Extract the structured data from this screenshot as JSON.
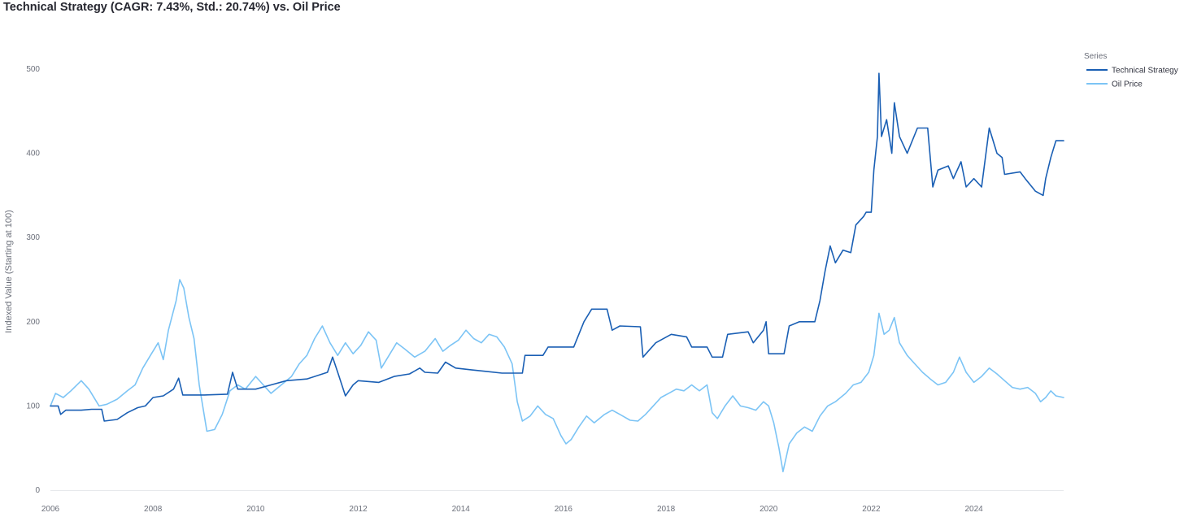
{
  "chart_data": {
    "type": "line",
    "title": "Technical Strategy (CAGR: 7.43%, Std.: 20.74%) vs. Oil Price",
    "xlabel": "",
    "ylabel": "Indexed Value (Starting at 100)",
    "xlim": [
      2006,
      2025.75
    ],
    "ylim": [
      0,
      500
    ],
    "x_ticks": [
      "2006",
      "2008",
      "2010",
      "2012",
      "2014",
      "2016",
      "2018",
      "2020",
      "2022",
      "2024"
    ],
    "y_ticks": [
      "0",
      "100",
      "200",
      "300",
      "400",
      "500"
    ],
    "grid": false,
    "legend": {
      "title": "Series",
      "position": "top-right"
    },
    "series": [
      {
        "name": "Technical Strategy",
        "color": "#1a5fb4",
        "points": [
          [
            2006.0,
            100
          ],
          [
            2006.15,
            100
          ],
          [
            2006.2,
            90
          ],
          [
            2006.3,
            95
          ],
          [
            2006.6,
            95
          ],
          [
            2006.8,
            96
          ],
          [
            2007.0,
            96
          ],
          [
            2007.05,
            82
          ],
          [
            2007.3,
            84
          ],
          [
            2007.5,
            92
          ],
          [
            2007.7,
            98
          ],
          [
            2007.85,
            100
          ],
          [
            2008.0,
            110
          ],
          [
            2008.2,
            112
          ],
          [
            2008.4,
            120
          ],
          [
            2008.5,
            133
          ],
          [
            2008.58,
            113
          ],
          [
            2009.0,
            113
          ],
          [
            2009.45,
            114
          ],
          [
            2009.55,
            140
          ],
          [
            2009.65,
            120
          ],
          [
            2010.0,
            120
          ],
          [
            2010.3,
            125
          ],
          [
            2010.6,
            130
          ],
          [
            2011.0,
            132
          ],
          [
            2011.4,
            140
          ],
          [
            2011.5,
            158
          ],
          [
            2011.6,
            140
          ],
          [
            2011.75,
            112
          ],
          [
            2011.9,
            125
          ],
          [
            2012.0,
            130
          ],
          [
            2012.4,
            128
          ],
          [
            2012.7,
            135
          ],
          [
            2013.0,
            138
          ],
          [
            2013.2,
            145
          ],
          [
            2013.3,
            140
          ],
          [
            2013.55,
            139
          ],
          [
            2013.7,
            152
          ],
          [
            2013.9,
            145
          ],
          [
            2014.2,
            143
          ],
          [
            2014.5,
            141
          ],
          [
            2014.8,
            139
          ],
          [
            2015.2,
            139
          ],
          [
            2015.25,
            160
          ],
          [
            2015.6,
            160
          ],
          [
            2015.7,
            170
          ],
          [
            2016.2,
            170
          ],
          [
            2016.4,
            200
          ],
          [
            2016.55,
            215
          ],
          [
            2016.85,
            215
          ],
          [
            2016.95,
            190
          ],
          [
            2017.1,
            195
          ],
          [
            2017.5,
            194
          ],
          [
            2017.55,
            158
          ],
          [
            2017.8,
            175
          ],
          [
            2018.1,
            185
          ],
          [
            2018.4,
            182
          ],
          [
            2018.5,
            170
          ],
          [
            2018.8,
            170
          ],
          [
            2018.9,
            158
          ],
          [
            2019.1,
            158
          ],
          [
            2019.2,
            185
          ],
          [
            2019.6,
            188
          ],
          [
            2019.7,
            175
          ],
          [
            2019.9,
            190
          ],
          [
            2019.95,
            200
          ],
          [
            2020.0,
            162
          ],
          [
            2020.3,
            162
          ],
          [
            2020.4,
            195
          ],
          [
            2020.6,
            200
          ],
          [
            2020.9,
            200
          ],
          [
            2021.0,
            225
          ],
          [
            2021.1,
            260
          ],
          [
            2021.2,
            290
          ],
          [
            2021.3,
            270
          ],
          [
            2021.45,
            285
          ],
          [
            2021.6,
            282
          ],
          [
            2021.7,
            315
          ],
          [
            2021.85,
            325
          ],
          [
            2021.9,
            330
          ],
          [
            2022.0,
            330
          ],
          [
            2022.05,
            380
          ],
          [
            2022.12,
            420
          ],
          [
            2022.15,
            495
          ],
          [
            2022.2,
            420
          ],
          [
            2022.3,
            440
          ],
          [
            2022.4,
            400
          ],
          [
            2022.45,
            460
          ],
          [
            2022.55,
            420
          ],
          [
            2022.7,
            400
          ],
          [
            2022.9,
            430
          ],
          [
            2023.1,
            430
          ],
          [
            2023.2,
            360
          ],
          [
            2023.3,
            380
          ],
          [
            2023.5,
            385
          ],
          [
            2023.6,
            370
          ],
          [
            2023.75,
            390
          ],
          [
            2023.85,
            360
          ],
          [
            2024.0,
            370
          ],
          [
            2024.15,
            360
          ],
          [
            2024.3,
            430
          ],
          [
            2024.45,
            400
          ],
          [
            2024.55,
            395
          ],
          [
            2024.6,
            375
          ],
          [
            2024.9,
            378
          ],
          [
            2025.0,
            370
          ],
          [
            2025.2,
            355
          ],
          [
            2025.35,
            350
          ],
          [
            2025.4,
            370
          ],
          [
            2025.5,
            395
          ],
          [
            2025.6,
            415
          ],
          [
            2025.75,
            415
          ]
        ]
      },
      {
        "name": "Oil Price",
        "color": "#7cc4f5",
        "points": [
          [
            2006.0,
            100
          ],
          [
            2006.1,
            115
          ],
          [
            2006.25,
            110
          ],
          [
            2006.4,
            118
          ],
          [
            2006.6,
            130
          ],
          [
            2006.75,
            120
          ],
          [
            2006.95,
            100
          ],
          [
            2007.1,
            102
          ],
          [
            2007.3,
            108
          ],
          [
            2007.5,
            118
          ],
          [
            2007.65,
            125
          ],
          [
            2007.8,
            145
          ],
          [
            2007.95,
            160
          ],
          [
            2008.1,
            175
          ],
          [
            2008.2,
            155
          ],
          [
            2008.3,
            190
          ],
          [
            2008.45,
            225
          ],
          [
            2008.52,
            250
          ],
          [
            2008.6,
            240
          ],
          [
            2008.7,
            205
          ],
          [
            2008.8,
            180
          ],
          [
            2008.9,
            125
          ],
          [
            2009.05,
            70
          ],
          [
            2009.2,
            72
          ],
          [
            2009.35,
            90
          ],
          [
            2009.5,
            118
          ],
          [
            2009.65,
            125
          ],
          [
            2009.8,
            120
          ],
          [
            2010.0,
            135
          ],
          [
            2010.15,
            125
          ],
          [
            2010.3,
            115
          ],
          [
            2010.5,
            125
          ],
          [
            2010.7,
            135
          ],
          [
            2010.85,
            150
          ],
          [
            2011.0,
            160
          ],
          [
            2011.15,
            180
          ],
          [
            2011.3,
            195
          ],
          [
            2011.45,
            175
          ],
          [
            2011.6,
            160
          ],
          [
            2011.75,
            175
          ],
          [
            2011.9,
            162
          ],
          [
            2012.05,
            172
          ],
          [
            2012.2,
            188
          ],
          [
            2012.35,
            178
          ],
          [
            2012.45,
            145
          ],
          [
            2012.6,
            160
          ],
          [
            2012.75,
            175
          ],
          [
            2012.9,
            168
          ],
          [
            2013.1,
            158
          ],
          [
            2013.3,
            165
          ],
          [
            2013.5,
            180
          ],
          [
            2013.65,
            165
          ],
          [
            2013.8,
            172
          ],
          [
            2013.95,
            178
          ],
          [
            2014.1,
            190
          ],
          [
            2014.25,
            180
          ],
          [
            2014.4,
            175
          ],
          [
            2014.55,
            185
          ],
          [
            2014.7,
            182
          ],
          [
            2014.85,
            170
          ],
          [
            2015.0,
            150
          ],
          [
            2015.1,
            105
          ],
          [
            2015.2,
            82
          ],
          [
            2015.35,
            88
          ],
          [
            2015.5,
            100
          ],
          [
            2015.65,
            90
          ],
          [
            2015.8,
            85
          ],
          [
            2015.95,
            65
          ],
          [
            2016.05,
            55
          ],
          [
            2016.15,
            60
          ],
          [
            2016.3,
            75
          ],
          [
            2016.45,
            88
          ],
          [
            2016.6,
            80
          ],
          [
            2016.8,
            90
          ],
          [
            2016.95,
            95
          ],
          [
            2017.1,
            90
          ],
          [
            2017.3,
            83
          ],
          [
            2017.45,
            82
          ],
          [
            2017.6,
            90
          ],
          [
            2017.75,
            100
          ],
          [
            2017.9,
            110
          ],
          [
            2018.05,
            115
          ],
          [
            2018.2,
            120
          ],
          [
            2018.35,
            118
          ],
          [
            2018.5,
            125
          ],
          [
            2018.65,
            118
          ],
          [
            2018.8,
            125
          ],
          [
            2018.9,
            92
          ],
          [
            2019.0,
            85
          ],
          [
            2019.15,
            100
          ],
          [
            2019.3,
            112
          ],
          [
            2019.45,
            100
          ],
          [
            2019.6,
            98
          ],
          [
            2019.75,
            95
          ],
          [
            2019.9,
            105
          ],
          [
            2020.0,
            100
          ],
          [
            2020.1,
            80
          ],
          [
            2020.2,
            50
          ],
          [
            2020.28,
            22
          ],
          [
            2020.4,
            55
          ],
          [
            2020.55,
            68
          ],
          [
            2020.7,
            75
          ],
          [
            2020.85,
            70
          ],
          [
            2021.0,
            88
          ],
          [
            2021.15,
            100
          ],
          [
            2021.3,
            105
          ],
          [
            2021.5,
            115
          ],
          [
            2021.65,
            125
          ],
          [
            2021.8,
            128
          ],
          [
            2021.95,
            140
          ],
          [
            2022.05,
            160
          ],
          [
            2022.15,
            210
          ],
          [
            2022.25,
            185
          ],
          [
            2022.35,
            190
          ],
          [
            2022.45,
            205
          ],
          [
            2022.55,
            175
          ],
          [
            2022.7,
            160
          ],
          [
            2022.85,
            150
          ],
          [
            2023.0,
            140
          ],
          [
            2023.15,
            132
          ],
          [
            2023.3,
            125
          ],
          [
            2023.45,
            128
          ],
          [
            2023.6,
            140
          ],
          [
            2023.72,
            158
          ],
          [
            2023.85,
            140
          ],
          [
            2024.0,
            128
          ],
          [
            2024.15,
            135
          ],
          [
            2024.3,
            145
          ],
          [
            2024.45,
            138
          ],
          [
            2024.6,
            130
          ],
          [
            2024.75,
            122
          ],
          [
            2024.9,
            120
          ],
          [
            2025.05,
            122
          ],
          [
            2025.2,
            115
          ],
          [
            2025.3,
            105
          ],
          [
            2025.4,
            110
          ],
          [
            2025.5,
            118
          ],
          [
            2025.6,
            112
          ],
          [
            2025.75,
            110
          ]
        ]
      }
    ]
  }
}
